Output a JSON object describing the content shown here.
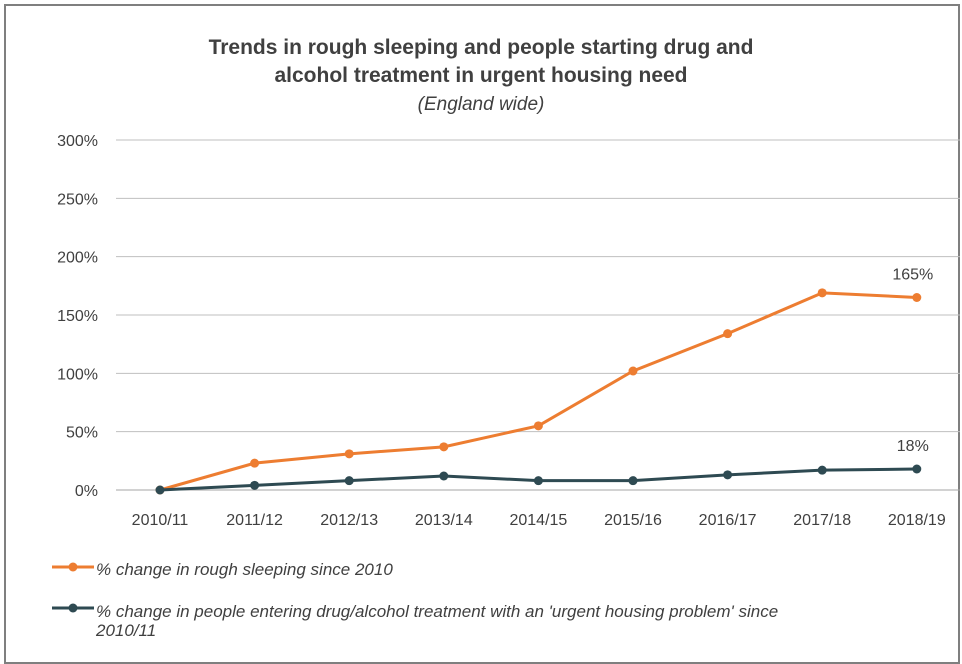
{
  "chart_data": {
    "type": "line",
    "title_line1": "Trends in rough sleeping and people starting drug and",
    "title_line2": "alcohol treatment in urgent housing need",
    "subtitle": "(England wide)",
    "categories": [
      "2010/11",
      "2011/12",
      "2012/13",
      "2013/14",
      "2014/15",
      "2015/16",
      "2016/17",
      "2017/18",
      "2018/19"
    ],
    "y_ticks": [
      "0%",
      "50%",
      "100%",
      "150%",
      "200%",
      "250%",
      "300%"
    ],
    "ylim": [
      0,
      300
    ],
    "grid": true,
    "legend_position": "bottom",
    "series": [
      {
        "name": "% change in rough sleeping since 2010",
        "color": "#ed7d31",
        "values": [
          0,
          23,
          31,
          37,
          55,
          102,
          134,
          169,
          165
        ],
        "end_label": "165%"
      },
      {
        "name": "% change in people entering drug/alcohol treatment with an 'urgent housing problem' since 2010/11",
        "legend_line1": "% change in people entering drug/alcohol treatment with an 'urgent housing problem' since",
        "legend_line2": "2010/11",
        "color": "#2e4a52",
        "values": [
          0,
          4,
          8,
          12,
          8,
          8,
          13,
          17,
          18
        ],
        "end_label": "18%"
      }
    ]
  }
}
